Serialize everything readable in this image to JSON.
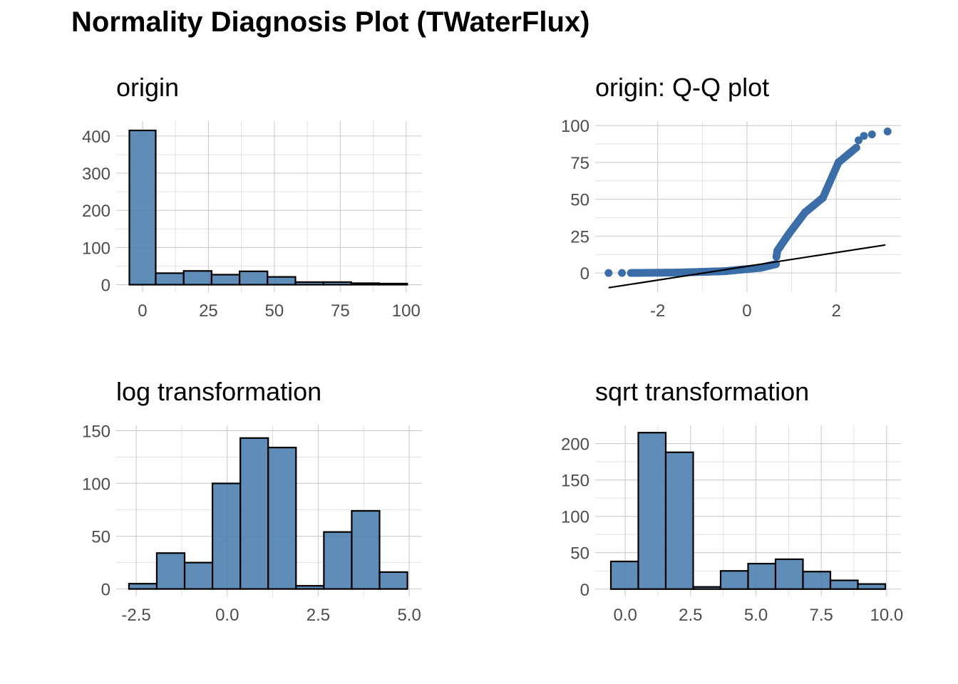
{
  "title": "Normality Diagnosis Plot (TWaterFlux)",
  "colors": {
    "bar_fill": "#4f7fb0",
    "bar_border": "#000000",
    "point": "#3b6ea8",
    "line": "#000000",
    "grid": "#cccccc"
  },
  "chart_data": [
    {
      "type": "bar",
      "title": "origin",
      "xlabel": "",
      "ylabel": "",
      "bins": [
        {
          "from": -5,
          "to": 5,
          "count": 415
        },
        {
          "from": 5,
          "to": 15.6,
          "count": 31
        },
        {
          "from": 15.6,
          "to": 26.2,
          "count": 37
        },
        {
          "from": 26.2,
          "to": 36.8,
          "count": 27
        },
        {
          "from": 36.8,
          "to": 47.4,
          "count": 36
        },
        {
          "from": 47.4,
          "to": 58,
          "count": 21
        },
        {
          "from": 58,
          "to": 68.6,
          "count": 7
        },
        {
          "from": 68.6,
          "to": 79.2,
          "count": 7
        },
        {
          "from": 79.2,
          "to": 89.8,
          "count": 4
        },
        {
          "from": 89.8,
          "to": 100.4,
          "count": 3
        }
      ],
      "xlim": [
        -10,
        106
      ],
      "ylim": [
        -20,
        440
      ],
      "xticks": [
        0,
        25,
        50,
        75,
        100
      ],
      "xtick_labels": [
        "0",
        "25",
        "50",
        "75",
        "100"
      ],
      "yticks": [
        0,
        100,
        200,
        300,
        400
      ],
      "ytick_labels": [
        "0",
        "100",
        "200",
        "300",
        "400"
      ],
      "grid": true
    },
    {
      "type": "scatter",
      "title": "origin: Q-Q plot",
      "xlabel": "",
      "ylabel": "",
      "segments": [
        {
          "x_from": -3.1,
          "x_to": -2.8,
          "y_from": 0,
          "y_to": 0,
          "n": 2
        },
        {
          "x_from": -2.6,
          "x_to": -1.5,
          "y_from": 0,
          "y_to": 0.3,
          "n": 30
        },
        {
          "x_from": -1.5,
          "x_to": -0.5,
          "y_from": 0.3,
          "y_to": 1.2,
          "n": 40
        },
        {
          "x_from": -0.5,
          "x_to": 0.3,
          "y_from": 1.2,
          "y_to": 3.5,
          "n": 40
        },
        {
          "x_from": 0.3,
          "x_to": 0.65,
          "y_from": 3.5,
          "y_to": 6.0,
          "n": 25
        },
        {
          "x_from": 0.66,
          "x_to": 0.68,
          "y_from": 11,
          "y_to": 15,
          "n": 4
        },
        {
          "x_from": 0.7,
          "x_to": 0.95,
          "y_from": 16,
          "y_to": 27,
          "n": 14
        },
        {
          "x_from": 0.95,
          "x_to": 1.3,
          "y_from": 27,
          "y_to": 41,
          "n": 16
        },
        {
          "x_from": 1.3,
          "x_to": 1.7,
          "y_from": 41,
          "y_to": 51,
          "n": 16
        },
        {
          "x_from": 1.7,
          "x_to": 2.05,
          "y_from": 51,
          "y_to": 75,
          "n": 14
        },
        {
          "x_from": 2.05,
          "x_to": 2.45,
          "y_from": 75,
          "y_to": 85,
          "n": 10
        }
      ],
      "points": [
        [
          2.5,
          90
        ],
        [
          2.62,
          93
        ],
        [
          2.8,
          94
        ],
        [
          3.15,
          96
        ]
      ],
      "reference_line": {
        "x": [
          -3.1,
          3.1
        ],
        "y": [
          -10,
          19
        ]
      },
      "xlim": [
        -3.4,
        3.45
      ],
      "ylim": [
        -13,
        103
      ],
      "xticks": [
        -2,
        0,
        2
      ],
      "xtick_labels": [
        "-2",
        "0",
        "2"
      ],
      "yticks": [
        0,
        25,
        50,
        75,
        100
      ],
      "ytick_labels": [
        "0",
        "25",
        "50",
        "75",
        "100"
      ],
      "grid": true
    },
    {
      "type": "bar",
      "title": "log transformation",
      "xlabel": "",
      "ylabel": "",
      "bins": [
        {
          "from": -2.7,
          "to": -1.935,
          "count": 5
        },
        {
          "from": -1.935,
          "to": -1.17,
          "count": 34
        },
        {
          "from": -1.17,
          "to": -0.405,
          "count": 25
        },
        {
          "from": -0.405,
          "to": 0.36,
          "count": 100
        },
        {
          "from": 0.36,
          "to": 1.125,
          "count": 143
        },
        {
          "from": 1.125,
          "to": 1.89,
          "count": 134
        },
        {
          "from": 1.89,
          "to": 2.655,
          "count": 3
        },
        {
          "from": 2.655,
          "to": 3.42,
          "count": 54
        },
        {
          "from": 3.42,
          "to": 4.185,
          "count": 74
        },
        {
          "from": 4.185,
          "to": 4.95,
          "count": 16
        }
      ],
      "xlim": [
        -3.05,
        5.35
      ],
      "ylim": [
        -7,
        155
      ],
      "xticks": [
        -2.5,
        0.0,
        2.5,
        5.0
      ],
      "xtick_labels": [
        "-2.5",
        "0.0",
        "2.5",
        "5.0"
      ],
      "yticks": [
        0,
        50,
        100,
        150
      ],
      "ytick_labels": [
        "0",
        "50",
        "100",
        "150"
      ],
      "grid": true
    },
    {
      "type": "bar",
      "title": "sqrt transformation",
      "xlabel": "",
      "ylabel": "",
      "bins": [
        {
          "from": -0.55,
          "to": 0.5,
          "count": 38
        },
        {
          "from": 0.5,
          "to": 1.55,
          "count": 215
        },
        {
          "from": 1.55,
          "to": 2.6,
          "count": 188
        },
        {
          "from": 2.6,
          "to": 3.65,
          "count": 3
        },
        {
          "from": 3.65,
          "to": 4.7,
          "count": 25
        },
        {
          "from": 4.7,
          "to": 5.75,
          "count": 35
        },
        {
          "from": 5.75,
          "to": 6.8,
          "count": 41
        },
        {
          "from": 6.8,
          "to": 7.85,
          "count": 24
        },
        {
          "from": 7.85,
          "to": 8.9,
          "count": 12
        },
        {
          "from": 8.9,
          "to": 9.95,
          "count": 7
        }
      ],
      "xlim": [
        -1.15,
        10.55
      ],
      "ylim": [
        -10,
        225
      ],
      "xticks": [
        0.0,
        2.5,
        5.0,
        7.5,
        10.0
      ],
      "xtick_labels": [
        "0.0",
        "2.5",
        "5.0",
        "7.5",
        "10.0"
      ],
      "yticks": [
        0,
        50,
        100,
        150,
        200
      ],
      "ytick_labels": [
        "0",
        "50",
        "100",
        "150",
        "200"
      ],
      "grid": true
    }
  ]
}
